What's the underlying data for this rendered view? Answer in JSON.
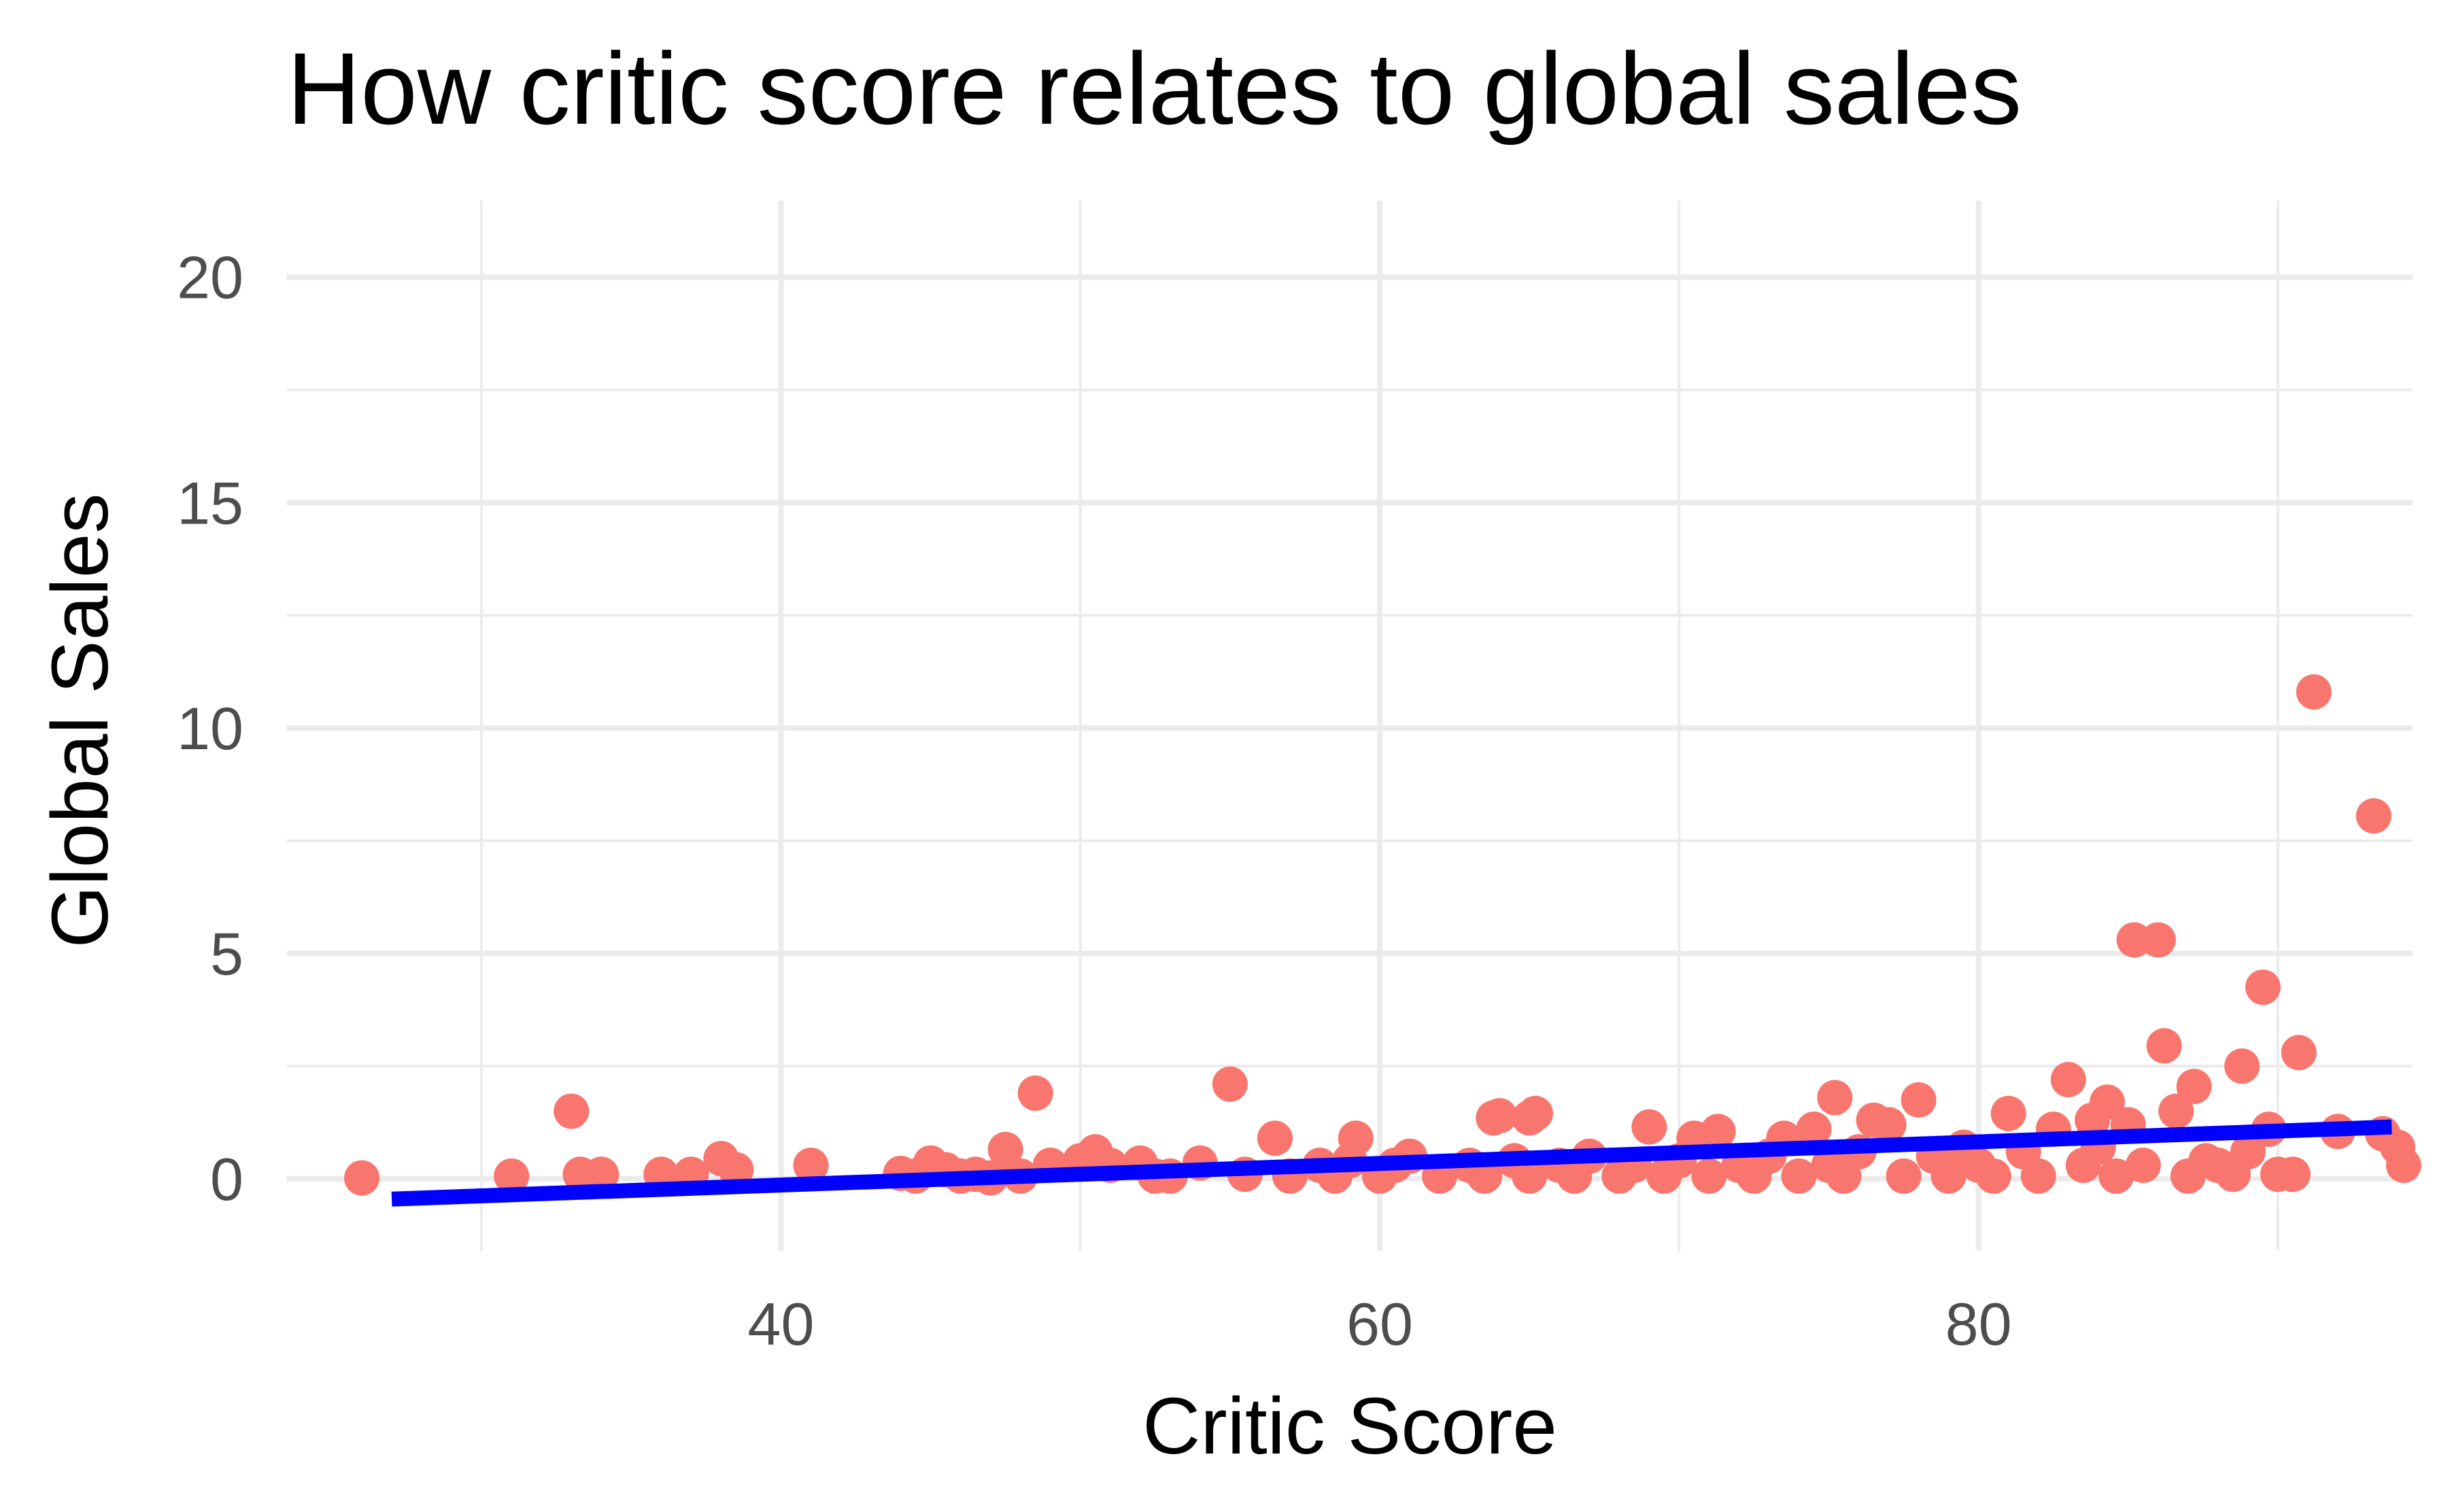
{
  "chart_data": {
    "type": "scatter",
    "title": "How critic score relates to global sales",
    "xlabel": "Critic Score",
    "ylabel": "Global Sales",
    "xlim": [
      23.5,
      94.5
    ],
    "ylim": [
      -1.6,
      21.7
    ],
    "x_ticks": [
      40,
      60,
      80
    ],
    "y_ticks": [
      0,
      5,
      10,
      15,
      20
    ],
    "x_tick_labels": [
      "40",
      "60",
      "80"
    ],
    "y_tick_labels": [
      "0",
      "5",
      "10",
      "15",
      "20"
    ],
    "grid": true,
    "legend": "none",
    "colors": {
      "points": "#F8766D",
      "trend": "#0000FF",
      "grid": "#EBEBEB",
      "tick_text": "#4D4D4D"
    },
    "points": [
      [
        26,
        0.02
      ],
      [
        31,
        0.06
      ],
      [
        33,
        1.5
      ],
      [
        33.3,
        0.1
      ],
      [
        34,
        0.1
      ],
      [
        36,
        0.1
      ],
      [
        37,
        0.1
      ],
      [
        38,
        0.45
      ],
      [
        38.5,
        0.2
      ],
      [
        41,
        0.3
      ],
      [
        44,
        0.12
      ],
      [
        44.5,
        0.06
      ],
      [
        45,
        0.35
      ],
      [
        45.5,
        0.2
      ],
      [
        46,
        0.06
      ],
      [
        46.5,
        0.1
      ],
      [
        47,
        0.02
      ],
      [
        47.5,
        0.65
      ],
      [
        48,
        0.06
      ],
      [
        48.5,
        1.9
      ],
      [
        49,
        0.3
      ],
      [
        50,
        0.4
      ],
      [
        50.5,
        0.6
      ],
      [
        51,
        0.3
      ],
      [
        52,
        0.35
      ],
      [
        52.5,
        0.06
      ],
      [
        53,
        0.06
      ],
      [
        54,
        0.35
      ],
      [
        55,
        2.1
      ],
      [
        55.5,
        0.1
      ],
      [
        56.5,
        0.9
      ],
      [
        57,
        0.06
      ],
      [
        58,
        0.3
      ],
      [
        58.5,
        0.06
      ],
      [
        59,
        0.4
      ],
      [
        59.2,
        0.9
      ],
      [
        60,
        0.06
      ],
      [
        60.5,
        0.3
      ],
      [
        61,
        0.5
      ],
      [
        62,
        0.06
      ],
      [
        63,
        0.3
      ],
      [
        63.5,
        0.06
      ],
      [
        63.8,
        1.35
      ],
      [
        64,
        1.4
      ],
      [
        64.5,
        0.4
      ],
      [
        65,
        0.06
      ],
      [
        65,
        1.35
      ],
      [
        65.2,
        1.45
      ],
      [
        66,
        0.3
      ],
      [
        66.5,
        0.06
      ],
      [
        67,
        0.5
      ],
      [
        68,
        0.06
      ],
      [
        68.5,
        0.3
      ],
      [
        69,
        1.15
      ],
      [
        69.5,
        0.06
      ],
      [
        70,
        0.4
      ],
      [
        70.5,
        0.9
      ],
      [
        71,
        0.06
      ],
      [
        71.3,
        1.05
      ],
      [
        72,
        0.3
      ],
      [
        72.5,
        0.06
      ],
      [
        73,
        0.5
      ],
      [
        73.5,
        0.9
      ],
      [
        74,
        0.06
      ],
      [
        74.5,
        1.1
      ],
      [
        75,
        0.3
      ],
      [
        75.2,
        1.8
      ],
      [
        75.5,
        0.06
      ],
      [
        76,
        0.6
      ],
      [
        76.5,
        1.3
      ],
      [
        77,
        1.2
      ],
      [
        77.5,
        0.06
      ],
      [
        78,
        1.75
      ],
      [
        78.5,
        0.5
      ],
      [
        79,
        0.06
      ],
      [
        79.5,
        0.7
      ],
      [
        80,
        0.3
      ],
      [
        80.5,
        0.06
      ],
      [
        81,
        1.45
      ],
      [
        81.5,
        0.6
      ],
      [
        82,
        0.06
      ],
      [
        82.5,
        1.1
      ],
      [
        83,
        2.2
      ],
      [
        83.5,
        0.3
      ],
      [
        83.8,
        1.3
      ],
      [
        84,
        0.7
      ],
      [
        84.3,
        1.7
      ],
      [
        84.6,
        0.06
      ],
      [
        85,
        1.2
      ],
      [
        85.2,
        5.3
      ],
      [
        85.5,
        0.3
      ],
      [
        86,
        5.3
      ],
      [
        86.2,
        2.95
      ],
      [
        86.6,
        1.5
      ],
      [
        87,
        0.06
      ],
      [
        87.2,
        2.05
      ],
      [
        87.6,
        0.4
      ],
      [
        88,
        0.3
      ],
      [
        88.5,
        0.1
      ],
      [
        88.8,
        2.5
      ],
      [
        89,
        0.6
      ],
      [
        89.5,
        4.25
      ],
      [
        89.7,
        1.1
      ],
      [
        90,
        0.1
      ],
      [
        90.5,
        0.1
      ],
      [
        90.7,
        2.8
      ],
      [
        91.2,
        10.8
      ],
      [
        92,
        1.05
      ],
      [
        93.2,
        8.05
      ],
      [
        93.5,
        1.0
      ],
      [
        94,
        0.7
      ],
      [
        94.2,
        0.3
      ]
    ],
    "trend_line": {
      "x": [
        27,
        93.8
      ],
      "y": [
        -0.45,
        1.15
      ]
    }
  }
}
